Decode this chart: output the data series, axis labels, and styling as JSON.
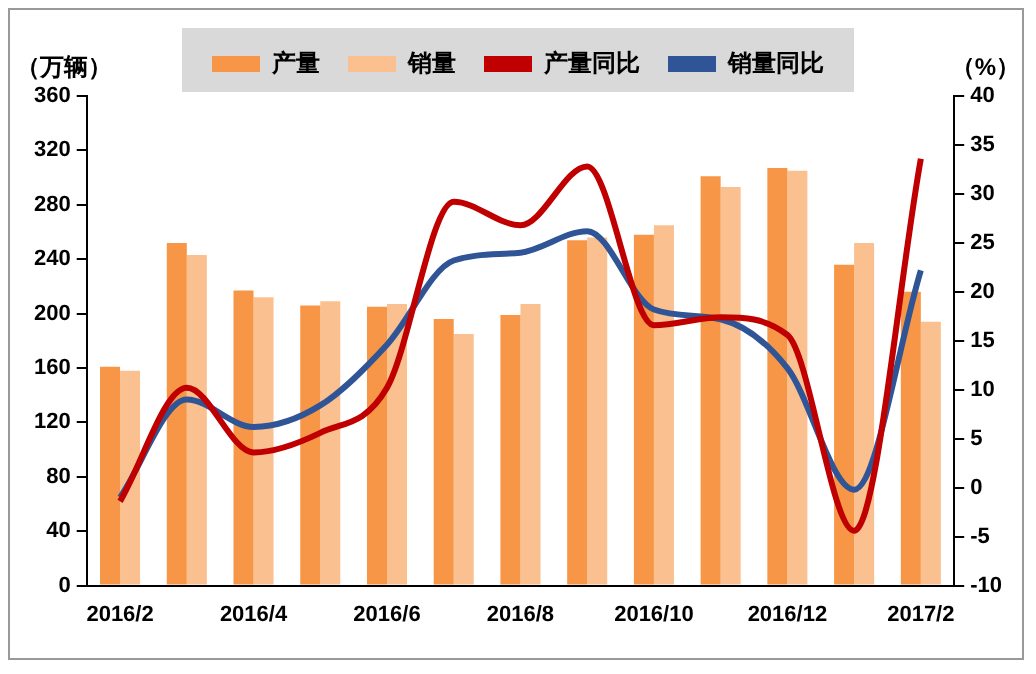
{
  "chart_data": {
    "type": "bar",
    "ylabel": "（万辆）",
    "y2label": "（%）",
    "categories": [
      "2016/2",
      null,
      "2016/4",
      null,
      "2016/6",
      null,
      "2016/8",
      null,
      "2016/10",
      null,
      "2016/12",
      null,
      "2017/2"
    ],
    "series": [
      {
        "name": "产量",
        "color": "#f79646",
        "values": [
          161,
          252,
          217,
          206,
          205,
          196,
          199,
          254,
          258,
          301,
          307,
          236,
          216
        ]
      },
      {
        "name": "销量",
        "color": "#fac090",
        "values": [
          158,
          243,
          212,
          209,
          207,
          185,
          207,
          256,
          265,
          293,
          305,
          252,
          194
        ]
      },
      {
        "name": "产量同比",
        "type": "line",
        "axis": "y2",
        "color": "#c00000",
        "values": [
          -1.4,
          10.2,
          3.6,
          5.6,
          10.2,
          29.2,
          26.8,
          32.8,
          16.6,
          17.4,
          15.6,
          -4.4,
          33.6
        ]
      },
      {
        "name": "销量同比",
        "type": "line",
        "axis": "y2",
        "color": "#2f5597",
        "values": [
          -1,
          9,
          6.2,
          8.4,
          14.6,
          23.2,
          24,
          26.2,
          18.2,
          17.2,
          12.2,
          -0.2,
          22.2
        ]
      }
    ],
    "ylim": [
      0,
      360
    ],
    "yticks": [
      0,
      40,
      80,
      120,
      160,
      200,
      240,
      280,
      320,
      360
    ],
    "y2lim": [
      -10,
      40
    ],
    "y2ticks": [
      -10,
      -5,
      0,
      5,
      10,
      15,
      20,
      25,
      30,
      35,
      40
    ],
    "grid": false,
    "legend": "top",
    "marker": "none"
  }
}
